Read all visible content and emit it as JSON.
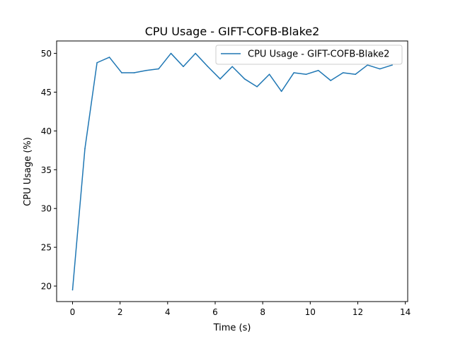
{
  "chart_data": {
    "type": "line",
    "title": "CPU Usage - GIFT-COFB-Blake2",
    "xlabel": "Time (s)",
    "ylabel": "CPU Usage (%)",
    "xlim": [
      -0.67,
      14.1
    ],
    "ylim": [
      18.0,
      51.6
    ],
    "xticks": [
      0,
      2,
      4,
      6,
      8,
      10,
      12,
      14
    ],
    "yticks": [
      20,
      25,
      30,
      35,
      40,
      45,
      50
    ],
    "grid": false,
    "legend_position": "top-right",
    "series": [
      {
        "name": "CPU Usage - GIFT-COFB-Blake2",
        "color": "#1f77b4",
        "x": [
          0,
          0.52,
          1.03,
          1.55,
          2.07,
          2.59,
          3.1,
          3.62,
          4.14,
          4.66,
          5.17,
          5.69,
          6.21,
          6.72,
          7.24,
          7.76,
          8.28,
          8.79,
          9.31,
          9.83,
          10.34,
          10.86,
          11.38,
          11.9,
          12.41,
          12.93,
          13.45
        ],
        "values": [
          19.5,
          37.7,
          48.8,
          49.5,
          47.5,
          47.5,
          47.8,
          48.0,
          50.0,
          48.3,
          50.0,
          48.3,
          46.7,
          48.3,
          46.7,
          45.7,
          47.3,
          45.1,
          47.5,
          47.3,
          47.8,
          46.5,
          47.5,
          47.3,
          48.5,
          48.0,
          48.5
        ]
      }
    ]
  }
}
